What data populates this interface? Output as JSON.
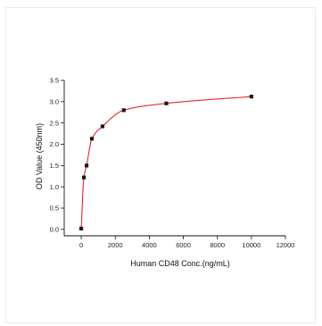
{
  "chart_data": {
    "type": "scatter",
    "title": "",
    "xlabel": "Human CD48 Conc.(ng/mL)",
    "ylabel": "OD Value (450nm)",
    "xlim": [
      -1000,
      12000
    ],
    "ylim": [
      -0.15,
      3.5
    ],
    "xticks": [
      0,
      2000,
      4000,
      6000,
      8000,
      10000,
      12000
    ],
    "yticks": [
      0.0,
      0.5,
      1.0,
      1.5,
      2.0,
      2.5,
      3.0,
      3.5
    ],
    "xtick_labels": [
      "0",
      "2000",
      "4000",
      "6000",
      "8000",
      "10000",
      "12000"
    ],
    "ytick_labels": [
      "0.0",
      "0.5",
      "1.0",
      "1.5",
      "2.0",
      "2.5",
      "3.0",
      "3.5"
    ],
    "grid": false,
    "legend": "none",
    "series": [
      {
        "marker": "square",
        "color": "#1a1a1a",
        "x": [
          0,
          156.25,
          312.5,
          625,
          1250,
          2500,
          5000,
          10000
        ],
        "y": [
          0.02,
          1.22,
          1.5,
          2.13,
          2.42,
          2.8,
          2.96,
          3.12
        ]
      }
    ],
    "fit_curve": {
      "color": "#e8262c",
      "type": "4pl",
      "x_range": [
        0,
        10000
      ]
    }
  }
}
